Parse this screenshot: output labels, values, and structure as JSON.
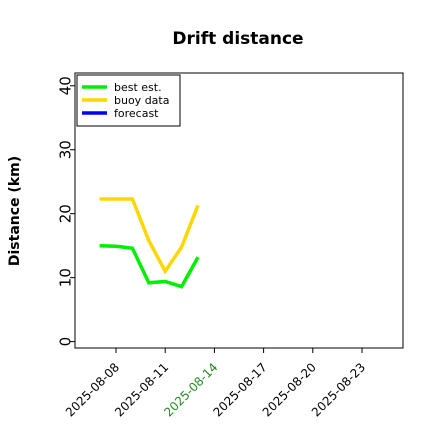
{
  "chart_data": {
    "type": "line",
    "title": "Drift distance",
    "xlabel": "",
    "ylabel": "Distance (km)",
    "xlim": [
      "2025-08-05T12:00",
      "2025-08-25T12:00"
    ],
    "ylim": [
      -1,
      42
    ],
    "y_ticks": [
      "0",
      "10",
      "20",
      "30",
      "40"
    ],
    "x_ticks": [
      {
        "label": "2025-08-08",
        "value": "2025-08-08",
        "color": "#000000"
      },
      {
        "label": "2025-08-11",
        "value": "2025-08-11",
        "color": "#000000"
      },
      {
        "label": "2025-08-14",
        "value": "2025-08-14",
        "color": "#228b22"
      },
      {
        "label": "2025-08-17",
        "value": "2025-08-17",
        "color": "#000000"
      },
      {
        "label": "2025-08-20",
        "value": "2025-08-20",
        "color": "#000000"
      },
      {
        "label": "2025-08-23",
        "value": "2025-08-23",
        "color": "#000000"
      }
    ],
    "grid": false,
    "legend_position": "upper-left",
    "series": [
      {
        "name": "best est.",
        "color": "#00ee00",
        "points": [
          {
            "x": "2025-08-07T00:00",
            "y": 15.0
          },
          {
            "x": "2025-08-08T00:00",
            "y": 14.9
          },
          {
            "x": "2025-08-09T00:00",
            "y": 14.6
          },
          {
            "x": "2025-08-10T00:00",
            "y": 9.2
          },
          {
            "x": "2025-08-11T00:00",
            "y": 9.4
          },
          {
            "x": "2025-08-12T00:00",
            "y": 8.6
          },
          {
            "x": "2025-08-13T00:00",
            "y": 13.2
          }
        ]
      },
      {
        "name": "buoy data",
        "color": "#ffd700",
        "points": [
          {
            "x": "2025-08-07T00:00",
            "y": 22.3
          },
          {
            "x": "2025-08-08T00:00",
            "y": 22.3
          },
          {
            "x": "2025-08-09T00:00",
            "y": 22.3
          },
          {
            "x": "2025-08-10T00:00",
            "y": 15.8
          },
          {
            "x": "2025-08-11T00:00",
            "y": 11.0
          },
          {
            "x": "2025-08-12T00:00",
            "y": 14.8
          },
          {
            "x": "2025-08-13T00:00",
            "y": 21.3
          }
        ]
      },
      {
        "name": "forecast",
        "color": "#0000ff",
        "points": []
      }
    ]
  }
}
